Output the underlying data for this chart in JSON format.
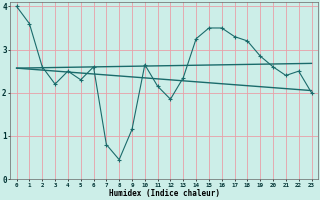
{
  "xlabel": "Humidex (Indice chaleur)",
  "bg_color": "#cceee8",
  "grid_color": "#e8a0a8",
  "line_color": "#1a6b6b",
  "xlim": [
    -0.5,
    23.5
  ],
  "ylim": [
    0,
    4.1
  ],
  "xticks": [
    0,
    1,
    2,
    3,
    4,
    5,
    6,
    7,
    8,
    9,
    10,
    11,
    12,
    13,
    14,
    15,
    16,
    17,
    18,
    19,
    20,
    21,
    22,
    23
  ],
  "yticks": [
    0,
    1,
    2,
    3,
    4
  ],
  "series1_x": [
    0,
    1,
    2,
    3,
    4,
    5,
    6,
    7,
    8,
    9,
    10,
    11,
    12,
    13,
    14,
    15,
    16,
    17,
    18,
    19,
    20,
    21,
    22,
    23
  ],
  "series1_y": [
    4.0,
    3.6,
    2.6,
    2.2,
    2.5,
    2.3,
    2.6,
    0.8,
    0.45,
    1.15,
    2.65,
    2.15,
    1.85,
    2.35,
    3.25,
    3.5,
    3.5,
    3.3,
    3.2,
    2.85,
    2.6,
    2.4,
    2.5,
    2.0
  ],
  "series2_x": [
    0,
    23
  ],
  "series2_y": [
    2.57,
    2.68
  ],
  "series3_x": [
    0,
    23
  ],
  "series3_y": [
    2.57,
    2.05
  ]
}
